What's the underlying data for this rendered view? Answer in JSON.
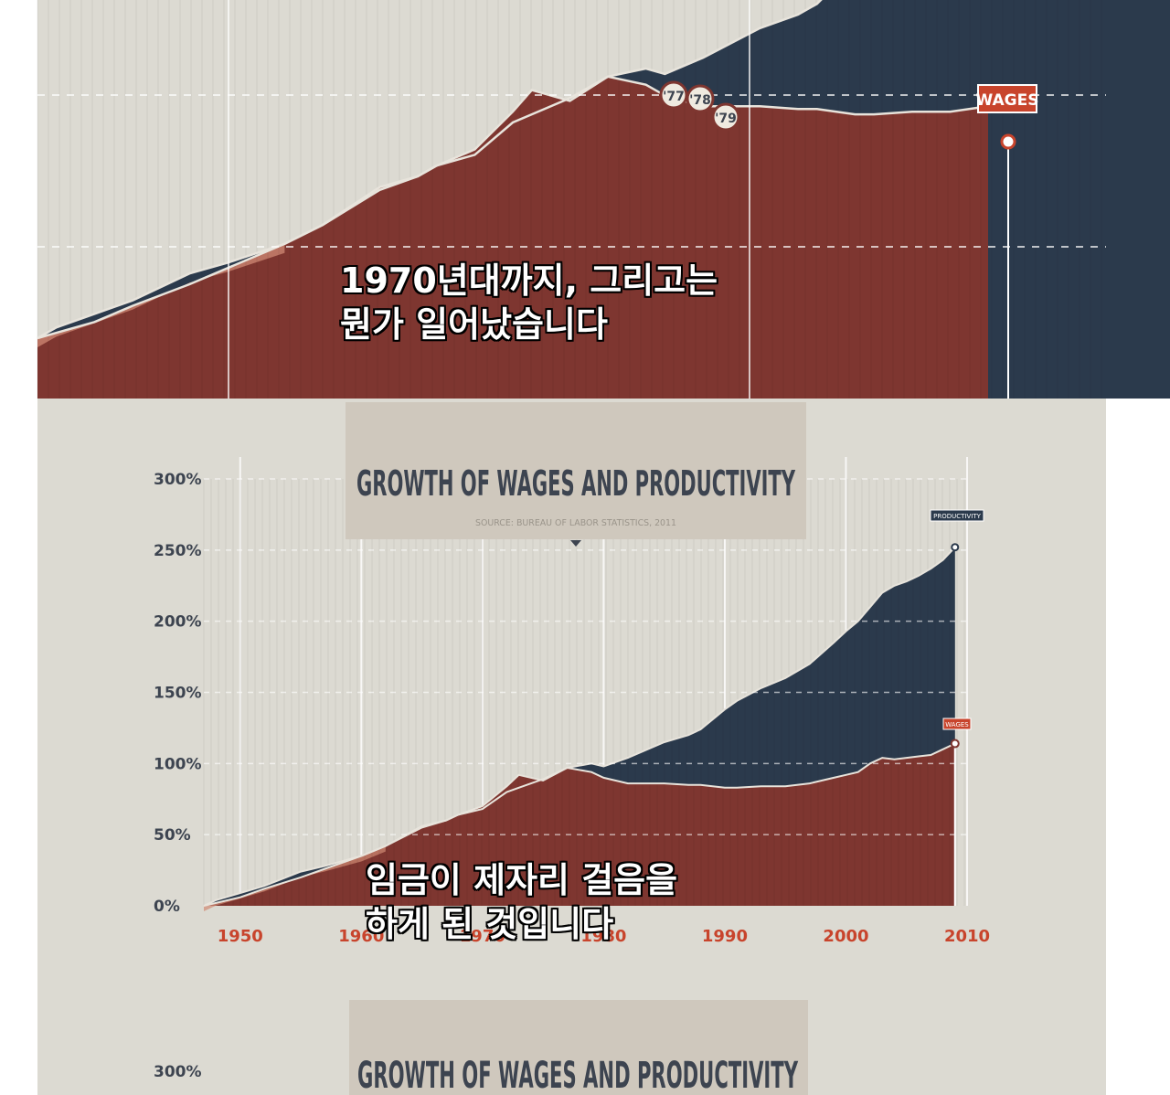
{
  "colors": {
    "background": "#dcdad2",
    "wages": "#7e3630",
    "wages_early": "#d08a74",
    "productivity": "#2b3a4c",
    "axis_text": "#3d4450",
    "year_text": "#c8442c",
    "title_box": "#cfc8bd",
    "label_box": "#c8442c"
  },
  "top_panel": {
    "markers": [
      "'77",
      "'78",
      "'79"
    ],
    "wages_tag": "WAGES",
    "subtitle_lines": [
      "1970년대까지, 그리고는",
      "뭔가 일어났습니다"
    ]
  },
  "middle_panel": {
    "chart_title": "GROWTH OF WAGES AND PRODUCTIVITY",
    "chart_source": "SOURCE: BUREAU OF LABOR STATISTICS, 2011",
    "productivity_tag": "PRODUCTIVITY",
    "wages_tag": "WAGES",
    "subtitle_lines": [
      "임금이 제자리 걸음을",
      "하게 된 것입니다"
    ]
  },
  "bottom_panel": {
    "chart_title": "GROWTH OF WAGES AND PRODUCTIVITY",
    "y_tick": "300%"
  },
  "chart_data": {
    "type": "area",
    "title": "GROWTH OF WAGES AND PRODUCTIVITY",
    "subtitle": "SOURCE: BUREAU OF LABOR STATISTICS, 2011",
    "xlabel": "",
    "ylabel": "",
    "x_ticks": [
      1950,
      1960,
      1970,
      1980,
      1990,
      2000,
      2010
    ],
    "x_tick_labels": [
      "1950",
      "1960",
      "1970",
      "1980",
      "1990",
      "2000",
      "2010"
    ],
    "y_ticks": [
      0,
      50,
      100,
      150,
      200,
      250,
      300
    ],
    "y_tick_labels": [
      "0%",
      "50%",
      "100%",
      "150%",
      "200%",
      "250%",
      "300%"
    ],
    "xlim": [
      1947,
      2011
    ],
    "ylim": [
      0,
      300
    ],
    "grid": true,
    "legend": "direct labels at end of series",
    "series": [
      {
        "name": "PRODUCTIVITY",
        "x": [
          1947,
          1948,
          1950,
          1952,
          1955,
          1957,
          1960,
          1962,
          1965,
          1967,
          1968,
          1970,
          1972,
          1973,
          1975,
          1977,
          1979,
          1980,
          1982,
          1985,
          1987,
          1988,
          1990,
          1991,
          1993,
          1995,
          1997,
          1999,
          2000,
          2001,
          2002,
          2003,
          2004,
          2005,
          2006,
          2007,
          2008,
          2009
        ],
        "y": [
          0,
          4,
          9,
          14,
          24,
          28,
          35,
          42,
          55,
          60,
          64,
          68,
          80,
          83,
          89,
          97,
          100,
          98,
          104,
          115,
          120,
          124,
          138,
          144,
          153,
          160,
          170,
          185,
          193,
          200,
          210,
          220,
          225,
          228,
          232,
          237,
          243,
          252
        ]
      },
      {
        "name": "WAGES",
        "x": [
          1947,
          1948,
          1950,
          1952,
          1955,
          1957,
          1960,
          1962,
          1965,
          1967,
          1968,
          1970,
          1972,
          1973,
          1975,
          1977,
          1979,
          1980,
          1982,
          1985,
          1987,
          1988,
          1990,
          1991,
          1993,
          1995,
          1997,
          1999,
          2000,
          2001,
          2002,
          2003,
          2004,
          2005,
          2006,
          2007,
          2008,
          2009
        ],
        "y": [
          0,
          2,
          6,
          12,
          20,
          26,
          35,
          42,
          56,
          60,
          64,
          70,
          84,
          92,
          88,
          97,
          94,
          90,
          86,
          86,
          85,
          85,
          83,
          83,
          84,
          84,
          86,
          90,
          92,
          94,
          100,
          104,
          103,
          104,
          105,
          106,
          110,
          114
        ]
      }
    ]
  }
}
